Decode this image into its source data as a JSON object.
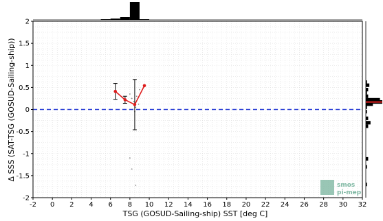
{
  "chart_data": {
    "type": "scatter",
    "xlabel": "TSG (GOSUD-Sailing-ship) SST [deg C]",
    "ylabel": "Δ SSS (SAT-TSG (GOSUD-Sailing-ship))",
    "xlim": [
      -2,
      32
    ],
    "ylim": [
      -2,
      2
    ],
    "x_ticks": [
      -2,
      0,
      2,
      4,
      6,
      8,
      10,
      12,
      14,
      16,
      18,
      20,
      22,
      24,
      26,
      28,
      30,
      32
    ],
    "y_ticks": [
      2,
      1.5,
      1,
      0.5,
      0,
      -0.5,
      -1,
      -1.5,
      -2
    ],
    "y_tick_labels": [
      "2",
      "1.5",
      "1",
      "0.5",
      "0",
      "-0.5",
      "-1",
      "-1.5",
      "-2"
    ],
    "grid": true,
    "reference_line": {
      "y": 0,
      "style": "dashed",
      "color": "#2a3fd6"
    },
    "mean_series": {
      "color": "#dd1c1c",
      "points": [
        {
          "x": 6.5,
          "y": 0.41,
          "err": 0.18
        },
        {
          "x": 7.5,
          "y": 0.22,
          "err": 0.08
        },
        {
          "x": 8.5,
          "y": 0.11,
          "err": 0.57
        },
        {
          "x": 9.5,
          "y": 0.54,
          "err": 0.0
        }
      ]
    },
    "scatter_points": {
      "color": "#888888",
      "points": [
        {
          "x": 8.0,
          "y": 0.35
        },
        {
          "x": 8.2,
          "y": 0.25
        },
        {
          "x": 8.4,
          "y": 0.18
        },
        {
          "x": 8.6,
          "y": 0.05
        },
        {
          "x": 8.3,
          "y": 0.0
        },
        {
          "x": 8.7,
          "y": 0.3
        },
        {
          "x": 9.0,
          "y": 0.45
        },
        {
          "x": 8.9,
          "y": 0.12
        },
        {
          "x": 8.5,
          "y": -0.05
        },
        {
          "x": 8.0,
          "y": -1.1
        },
        {
          "x": 8.2,
          "y": -1.35
        },
        {
          "x": 8.6,
          "y": -1.72
        }
      ]
    },
    "top_histogram": {
      "color": "#000000",
      "bins": [
        {
          "x": 5.5,
          "count": 1
        },
        {
          "x": 6.5,
          "count": 2
        },
        {
          "x": 7.5,
          "count": 4
        },
        {
          "x": 8.5,
          "count": 26
        },
        {
          "x": 9.5,
          "count": 1
        }
      ]
    },
    "right_histogram": {
      "color": "#000000",
      "mean_line": {
        "y": 0.17,
        "color": "#dd1c1c"
      },
      "bins": [
        {
          "y": 0.62,
          "count": 1
        },
        {
          "y": 0.55,
          "count": 3
        },
        {
          "y": 0.45,
          "count": 2
        },
        {
          "y": 0.38,
          "count": 1
        },
        {
          "y": 0.3,
          "count": 2
        },
        {
          "y": 0.22,
          "count": 12
        },
        {
          "y": 0.17,
          "count": 14
        },
        {
          "y": 0.12,
          "count": 6
        },
        {
          "y": 0.05,
          "count": 1
        },
        {
          "y": -0.05,
          "count": 1
        },
        {
          "y": -0.2,
          "count": 2
        },
        {
          "y": -0.3,
          "count": 4
        },
        {
          "y": -0.38,
          "count": 2
        },
        {
          "y": -1.12,
          "count": 2
        },
        {
          "y": -1.3,
          "count": 1
        },
        {
          "y": -1.7,
          "count": 1
        }
      ]
    }
  },
  "logo": {
    "line1": "smos",
    "line2": "pi-mep",
    "color": "#7fb8a3"
  }
}
